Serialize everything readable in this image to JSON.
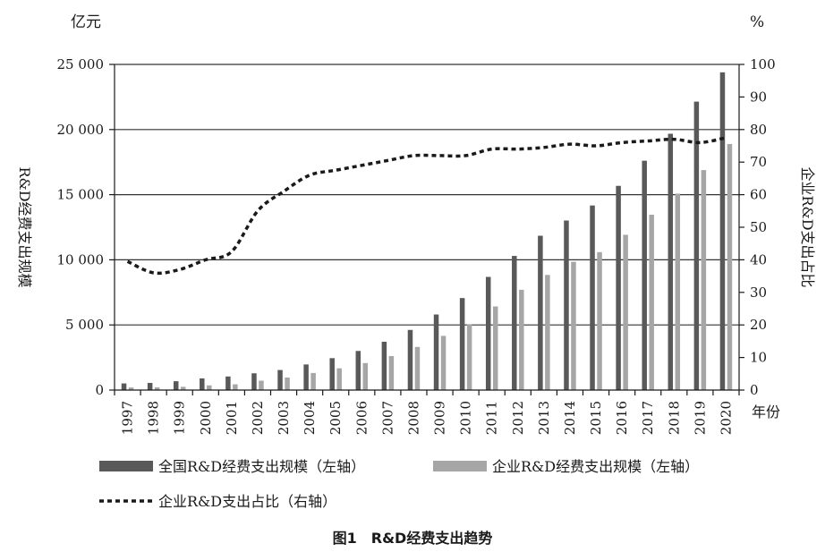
{
  "chart_data": {
    "type": "bar",
    "title": "图1　R&D经费支出趋势",
    "left_unit": "亿元",
    "right_unit": "%",
    "ylabel": "R&D经费支出规模",
    "y2label": "企业R&D支出占比",
    "xlabel": "年份",
    "ylim": [
      0,
      25000
    ],
    "y2lim": [
      0,
      100
    ],
    "left_ticks": [
      "0",
      "5 000",
      "10 000",
      "15 000",
      "20 000",
      "25 000"
    ],
    "right_ticks": [
      "0",
      "10",
      "20",
      "30",
      "40",
      "50",
      "60",
      "70",
      "80",
      "90",
      "100"
    ],
    "categories": [
      "1997",
      "1998",
      "1999",
      "2000",
      "2001",
      "2002",
      "2003",
      "2004",
      "2005",
      "2006",
      "2007",
      "2008",
      "2009",
      "2010",
      "2011",
      "2012",
      "2013",
      "2014",
      "2015",
      "2016",
      "2017",
      "2018",
      "2019",
      "2020"
    ],
    "series": [
      {
        "name": "全国R&D经费支出规模（左轴）",
        "kind": "bar",
        "axis": "left",
        "color": "#595959",
        "values": [
          509,
          551,
          679,
          896,
          1043,
          1288,
          1540,
          1966,
          2450,
          3003,
          3710,
          4616,
          5802,
          7063,
          8687,
          10298,
          11847,
          13016,
          14170,
          15677,
          17606,
          19678,
          22144,
          24393
        ]
      },
      {
        "name": "企业R&D经费支出规模（左轴）",
        "kind": "bar",
        "axis": "left",
        "color": "#a6a6a6",
        "values": [
          200,
          210,
          250,
          360,
          440,
          720,
          960,
          1310,
          1670,
          2070,
          2610,
          3310,
          4160,
          5060,
          6420,
          7700,
          8840,
          9850,
          10590,
          11920,
          13460,
          15080,
          16890,
          18890
        ]
      },
      {
        "name": "企业R&D支出占比（右轴）",
        "kind": "line",
        "axis": "right",
        "color": "#1a1a1a",
        "values": [
          39.5,
          36,
          37,
          40,
          42.5,
          55,
          61,
          66,
          67.5,
          69,
          70.5,
          72,
          72,
          72,
          74,
          74,
          74.5,
          75.5,
          75,
          76,
          76.5,
          77,
          76,
          77.5
        ]
      }
    ],
    "grid": "horizontal",
    "legend": "bottom"
  }
}
